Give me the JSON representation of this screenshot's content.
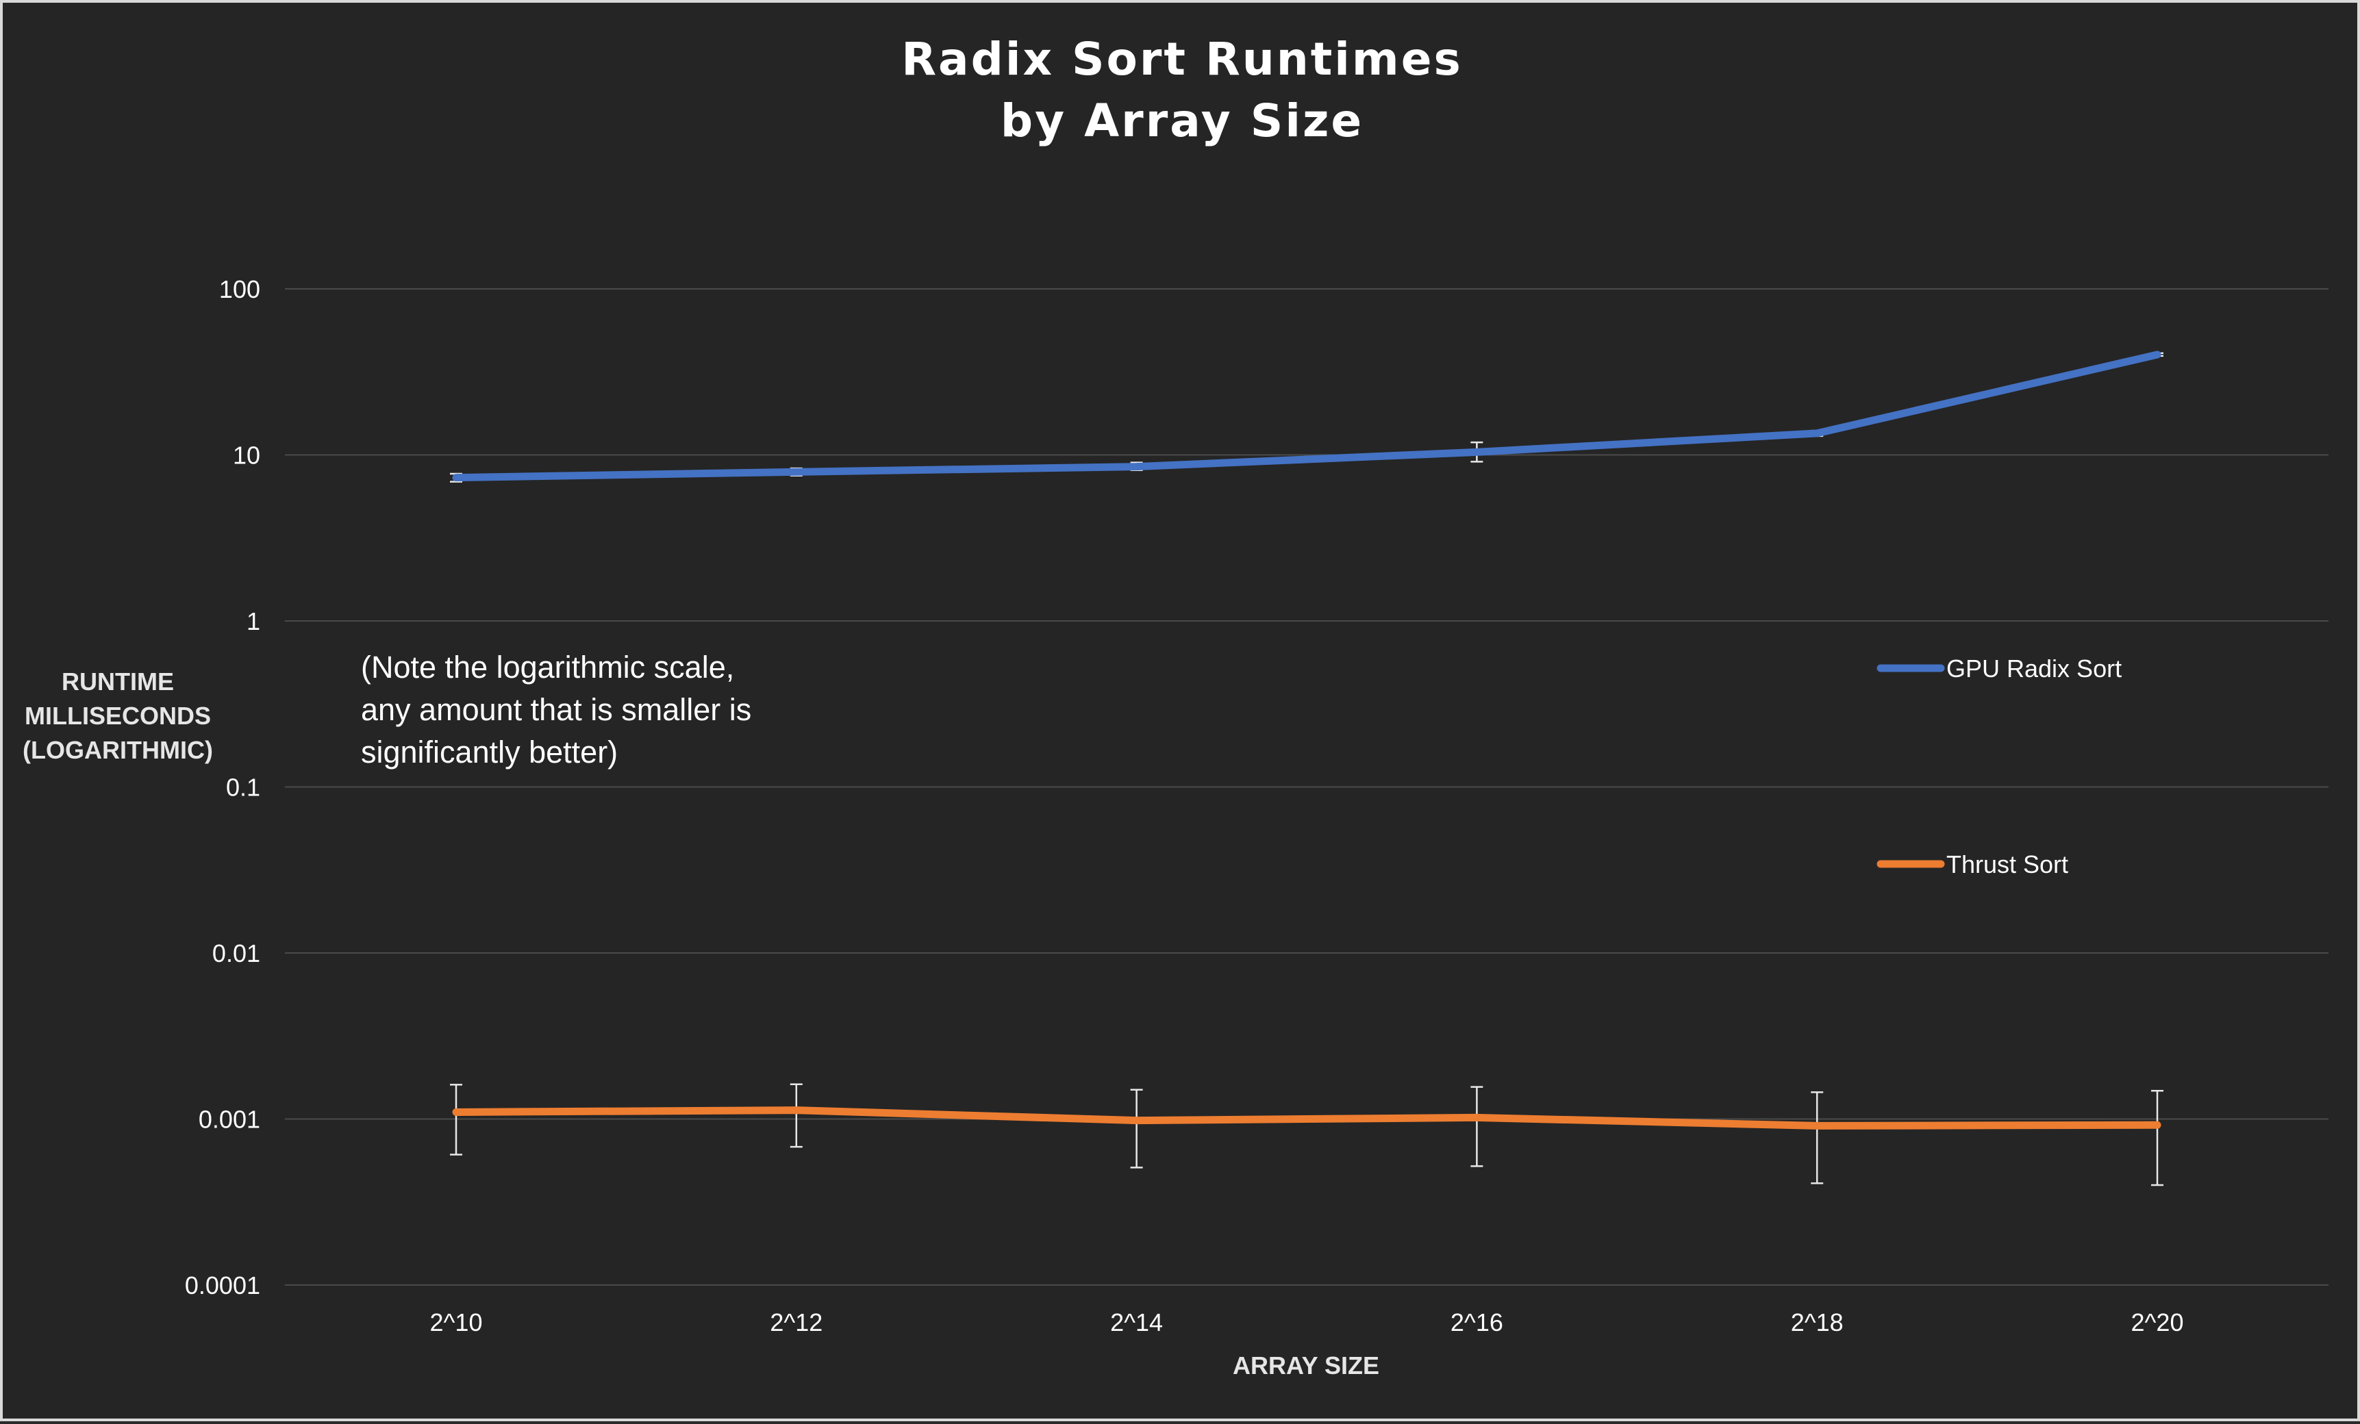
{
  "chart_data": {
    "type": "line",
    "title": [
      "Radix Sort Runtimes",
      "by Array Size"
    ],
    "xlabel": "ARRAY SIZE",
    "ylabel": [
      "RUNTIME",
      "MILLISECONDS",
      "(LOGARITHMIC)"
    ],
    "annotation": [
      "(Note the logarithmic scale,",
      "any amount that is smaller is",
      "significantly better)"
    ],
    "y_scale": "log",
    "ylim": [
      0.0001,
      100
    ],
    "y_ticks": [
      100,
      10,
      1,
      0.1,
      0.01,
      0.001,
      0.0001
    ],
    "y_tick_labels": [
      "100",
      "10",
      "1",
      "0.1",
      "0.01",
      "0.001",
      "0.0001"
    ],
    "categories": [
      "2^10",
      "2^12",
      "2^14",
      "2^16",
      "2^18",
      "2^20"
    ],
    "grid": true,
    "legend_position": "right",
    "series": [
      {
        "name": "GPU Radix Sort",
        "color": "#4472c4",
        "values": [
          7.3,
          7.9,
          8.5,
          10.4,
          13.5,
          40.2
        ],
        "error_low": [
          6.9,
          7.5,
          8.1,
          9.1,
          13.0,
          39.5
        ],
        "error_high": [
          7.7,
          8.3,
          9.0,
          11.9,
          14.0,
          41.0
        ]
      },
      {
        "name": "Thrust Sort",
        "color": "#ed7d31",
        "values": [
          0.0011,
          0.00113,
          0.00098,
          0.00102,
          0.00091,
          0.00092
        ],
        "error_low": [
          0.00061,
          0.00068,
          0.00051,
          0.00052,
          0.00041,
          0.0004
        ],
        "error_high": [
          0.00161,
          0.00162,
          0.0015,
          0.00156,
          0.00145,
          0.00148
        ]
      }
    ]
  }
}
